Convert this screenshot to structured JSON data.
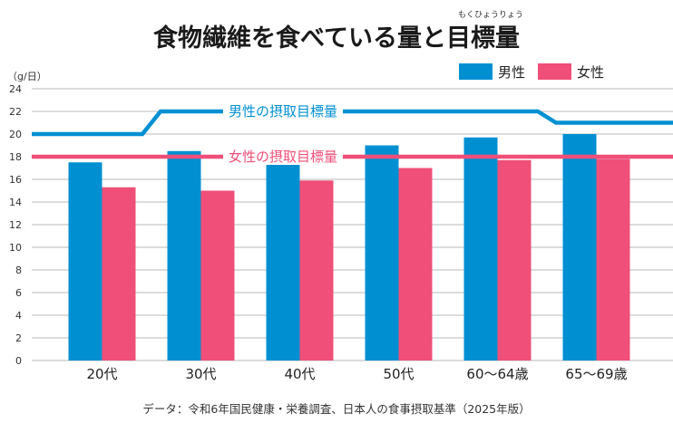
{
  "title": "食物繊維を食べている量と目標量",
  "title_ruby": "もくひょうりょう",
  "source": "データ：令和6年国民健康・栄養調査、日本人の食事摂取基準（2025年版）",
  "colors": {
    "male": "#0090d2",
    "female": "#ef4f78",
    "male_target": "#0090d2",
    "female_target": "#ef4f78",
    "grid": "#b8b8b8"
  },
  "chart_data": {
    "type": "bar",
    "title": "食物繊維を食べている量と目標量",
    "ylabel": "（g/日）",
    "ylim": [
      0,
      24
    ],
    "yticks": [
      0,
      2,
      4,
      6,
      8,
      10,
      12,
      14,
      16,
      18,
      20,
      22,
      24
    ],
    "grid": true,
    "legend_position": "top-right",
    "categories": [
      "20代",
      "30代",
      "40代",
      "50代",
      "60〜64歳",
      "65〜69歳"
    ],
    "series": [
      {
        "name": "男性",
        "values": [
          17.5,
          18.5,
          18.3,
          19.0,
          19.7,
          20.0
        ]
      },
      {
        "name": "女性",
        "values": [
          15.3,
          15.0,
          15.9,
          17.0,
          17.7,
          17.8
        ]
      }
    ],
    "target_lines": [
      {
        "name": "男性の摂取目標量",
        "values": [
          20,
          22,
          22,
          22,
          22,
          21
        ]
      },
      {
        "name": "女性の摂取目標量",
        "values": [
          18,
          18,
          18,
          18,
          18,
          18
        ]
      }
    ]
  }
}
